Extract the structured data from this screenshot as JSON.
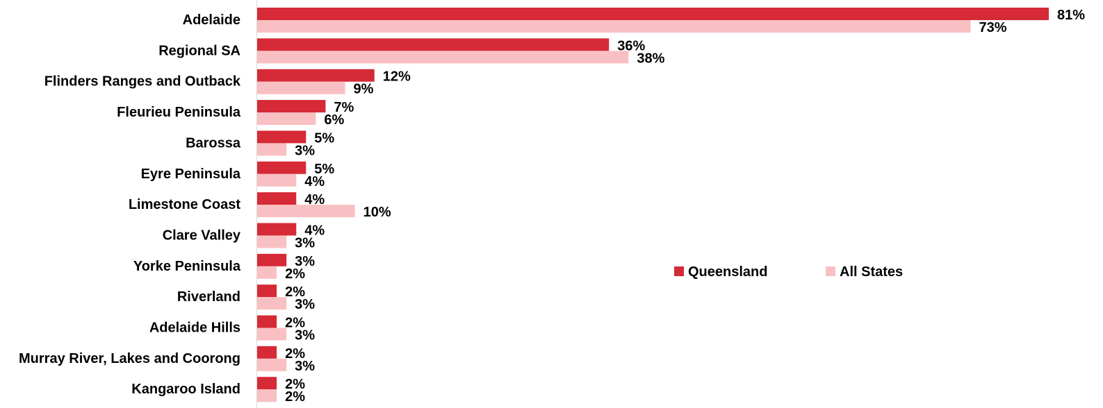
{
  "chart_data": {
    "type": "bar",
    "orientation": "horizontal",
    "categories": [
      "Adelaide",
      "Regional SA",
      "Flinders Ranges and Outback",
      "Fleurieu Peninsula",
      "Barossa",
      "Eyre Peninsula",
      "Limestone Coast",
      "Clare Valley",
      "Yorke Peninsula",
      "Riverland",
      "Adelaide Hills",
      "Murray River, Lakes and Coorong",
      "Kangaroo Island"
    ],
    "series": [
      {
        "name": "Queensland",
        "color": "#d62a36",
        "values": [
          81,
          36,
          12,
          7,
          5,
          5,
          4,
          4,
          3,
          2,
          2,
          2,
          2
        ],
        "labels": [
          "81%",
          "36%",
          "12%",
          "7%",
          "5%",
          "5%",
          "4%",
          "4%",
          "3%",
          "2%",
          "2%",
          "2%",
          "2%"
        ]
      },
      {
        "name": "All States",
        "color": "#f9c0c3",
        "values": [
          73,
          38,
          9,
          6,
          3,
          4,
          10,
          3,
          2,
          3,
          3,
          3,
          2
        ],
        "labels": [
          "73%",
          "38%",
          "9%",
          "6%",
          "3%",
          "4%",
          "10%",
          "3%",
          "2%",
          "3%",
          "3%",
          "3%",
          "2%"
        ]
      }
    ],
    "unit": "%",
    "xlim": [
      0,
      81
    ],
    "grid": false,
    "legend_position": "right-middle"
  }
}
